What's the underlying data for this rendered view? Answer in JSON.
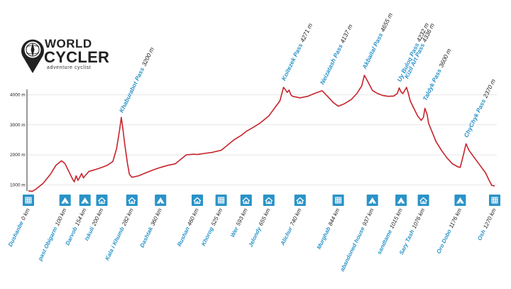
{
  "logo": {
    "line1": "WORLD",
    "line2": "CYCLER",
    "tagline": "adventure cyclist"
  },
  "colors": {
    "profile": "#c8232b",
    "accent_blue": "#2a93c8",
    "axis": "#333333",
    "grid": "#d9d9d9"
  },
  "chart_data": {
    "type": "line",
    "title": "",
    "xlabel": "",
    "ylabel": "",
    "xlim": [
      0,
      1270
    ],
    "ylim": [
      750,
      4900
    ],
    "yticks": [
      1000,
      2000,
      3000,
      4000
    ],
    "ytick_labels": [
      "1000 m",
      "2000 m",
      "3000 m",
      "4000 m"
    ],
    "grid": "horizontal",
    "profile": [
      [
        0,
        800
      ],
      [
        10,
        780
      ],
      [
        20,
        850
      ],
      [
        40,
        1050
      ],
      [
        60,
        1350
      ],
      [
        75,
        1650
      ],
      [
        85,
        1750
      ],
      [
        90,
        1800
      ],
      [
        95,
        1760
      ],
      [
        100,
        1700
      ],
      [
        110,
        1450
      ],
      [
        120,
        1200
      ],
      [
        125,
        1100
      ],
      [
        130,
        1300
      ],
      [
        135,
        1150
      ],
      [
        140,
        1250
      ],
      [
        145,
        1380
      ],
      [
        150,
        1230
      ],
      [
        154,
        1300
      ],
      [
        165,
        1450
      ],
      [
        180,
        1500
      ],
      [
        200,
        1580
      ],
      [
        215,
        1650
      ],
      [
        230,
        1780
      ],
      [
        240,
        2200
      ],
      [
        248,
        2800
      ],
      [
        253,
        3250
      ],
      [
        257,
        2900
      ],
      [
        262,
        2400
      ],
      [
        270,
        1700
      ],
      [
        275,
        1350
      ],
      [
        282,
        1250
      ],
      [
        300,
        1300
      ],
      [
        320,
        1400
      ],
      [
        340,
        1500
      ],
      [
        360,
        1580
      ],
      [
        380,
        1650
      ],
      [
        400,
        1700
      ],
      [
        415,
        1850
      ],
      [
        430,
        2000
      ],
      [
        450,
        2020
      ],
      [
        460,
        2010
      ],
      [
        480,
        2050
      ],
      [
        500,
        2080
      ],
      [
        510,
        2110
      ],
      [
        525,
        2150
      ],
      [
        540,
        2300
      ],
      [
        560,
        2500
      ],
      [
        580,
        2650
      ],
      [
        593,
        2780
      ],
      [
        610,
        2900
      ],
      [
        630,
        3050
      ],
      [
        655,
        3300
      ],
      [
        670,
        3550
      ],
      [
        685,
        3800
      ],
      [
        695,
        4250
      ],
      [
        700,
        4170
      ],
      [
        705,
        4080
      ],
      [
        710,
        4160
      ],
      [
        715,
        4000
      ],
      [
        720,
        3950
      ],
      [
        740,
        3900
      ],
      [
        760,
        3950
      ],
      [
        780,
        4050
      ],
      [
        800,
        4137
      ],
      [
        815,
        3950
      ],
      [
        830,
        3750
      ],
      [
        844,
        3620
      ],
      [
        860,
        3700
      ],
      [
        880,
        3850
      ],
      [
        895,
        4050
      ],
      [
        908,
        4300
      ],
      [
        915,
        4650
      ],
      [
        922,
        4500
      ],
      [
        937,
        4150
      ],
      [
        950,
        4050
      ],
      [
        965,
        3980
      ],
      [
        980,
        3950
      ],
      [
        995,
        3960
      ],
      [
        1005,
        4050
      ],
      [
        1010,
        4232
      ],
      [
        1015,
        4100
      ],
      [
        1020,
        4040
      ],
      [
        1025,
        4150
      ],
      [
        1030,
        4250
      ],
      [
        1035,
        4050
      ],
      [
        1040,
        3800
      ],
      [
        1050,
        3550
      ],
      [
        1060,
        3300
      ],
      [
        1070,
        3150
      ],
      [
        1076,
        3250
      ],
      [
        1080,
        3550
      ],
      [
        1086,
        3350
      ],
      [
        1090,
        3050
      ],
      [
        1100,
        2750
      ],
      [
        1110,
        2450
      ],
      [
        1125,
        2150
      ],
      [
        1140,
        1900
      ],
      [
        1155,
        1700
      ],
      [
        1170,
        1600
      ],
      [
        1176,
        1580
      ],
      [
        1185,
        2000
      ],
      [
        1192,
        2370
      ],
      [
        1200,
        2150
      ],
      [
        1215,
        1900
      ],
      [
        1230,
        1650
      ],
      [
        1245,
        1400
      ],
      [
        1255,
        1150
      ],
      [
        1262,
        980
      ],
      [
        1270,
        960
      ]
    ],
    "passes": [
      {
        "name": "Khaburabot Pass",
        "elevation": "3200 m",
        "km": 253
      },
      {
        "name": "Koitezek Pass",
        "elevation": "4271 m",
        "km": 695
      },
      {
        "name": "Neizatash Pass",
        "elevation": "4137 m",
        "km": 800
      },
      {
        "name": "Akbaital Pass",
        "elevation": "4655 m",
        "km": 915
      },
      {
        "name": "Uy Buloq Pass",
        "elevation": "4232 m",
        "km": 1010
      },
      {
        "name": "Kizil Art Pass",
        "elevation": "4336 m",
        "km": 1030
      },
      {
        "name": "Taldyk Pass",
        "elevation": "3600 m",
        "km": 1080
      },
      {
        "name": "ChyChyk Pass",
        "elevation": "2370 m",
        "km": 1192
      }
    ],
    "stops": [
      {
        "name": "Dushanbe",
        "km_label": "0 km",
        "km": 0,
        "icon": "hotel"
      },
      {
        "name": "past Obigarm",
        "km_label": "100 km",
        "km": 100,
        "icon": "tent"
      },
      {
        "name": "Darvob",
        "km_label": "154 km",
        "km": 154,
        "icon": "tent"
      },
      {
        "name": "Iskuli",
        "km_label": "200 km",
        "km": 200,
        "icon": "house"
      },
      {
        "name": "Kala i Khumb",
        "km_label": "282 km",
        "km": 282,
        "icon": "house"
      },
      {
        "name": "Dashtak",
        "km_label": "360 km",
        "km": 360,
        "icon": "tent"
      },
      {
        "name": "Rushan",
        "km_label": "460 km",
        "km": 460,
        "icon": "house"
      },
      {
        "name": "Khorog",
        "km_label": "525 km",
        "km": 525,
        "icon": "hotel"
      },
      {
        "name": "Wer",
        "km_label": "593 km",
        "km": 593,
        "icon": "house"
      },
      {
        "name": "Jelondy",
        "km_label": "655 km",
        "km": 655,
        "icon": "house"
      },
      {
        "name": "Alichur",
        "km_label": "740 km",
        "km": 740,
        "icon": "house"
      },
      {
        "name": "Murghab",
        "km_label": "844 km",
        "km": 844,
        "icon": "hotel"
      },
      {
        "name": "abandoned house",
        "km_label": "937 km",
        "km": 937,
        "icon": "tent"
      },
      {
        "name": "sandtame",
        "km_label": "1015 km",
        "km": 1015,
        "icon": "tent"
      },
      {
        "name": "Sary Tash",
        "km_label": "1076 km",
        "km": 1076,
        "icon": "house"
      },
      {
        "name": "Oro Dobo",
        "km_label": "1176 km",
        "km": 1176,
        "icon": "tent"
      },
      {
        "name": "Osh",
        "km_label": "1270 km",
        "km": 1270,
        "icon": "hotel"
      }
    ]
  }
}
